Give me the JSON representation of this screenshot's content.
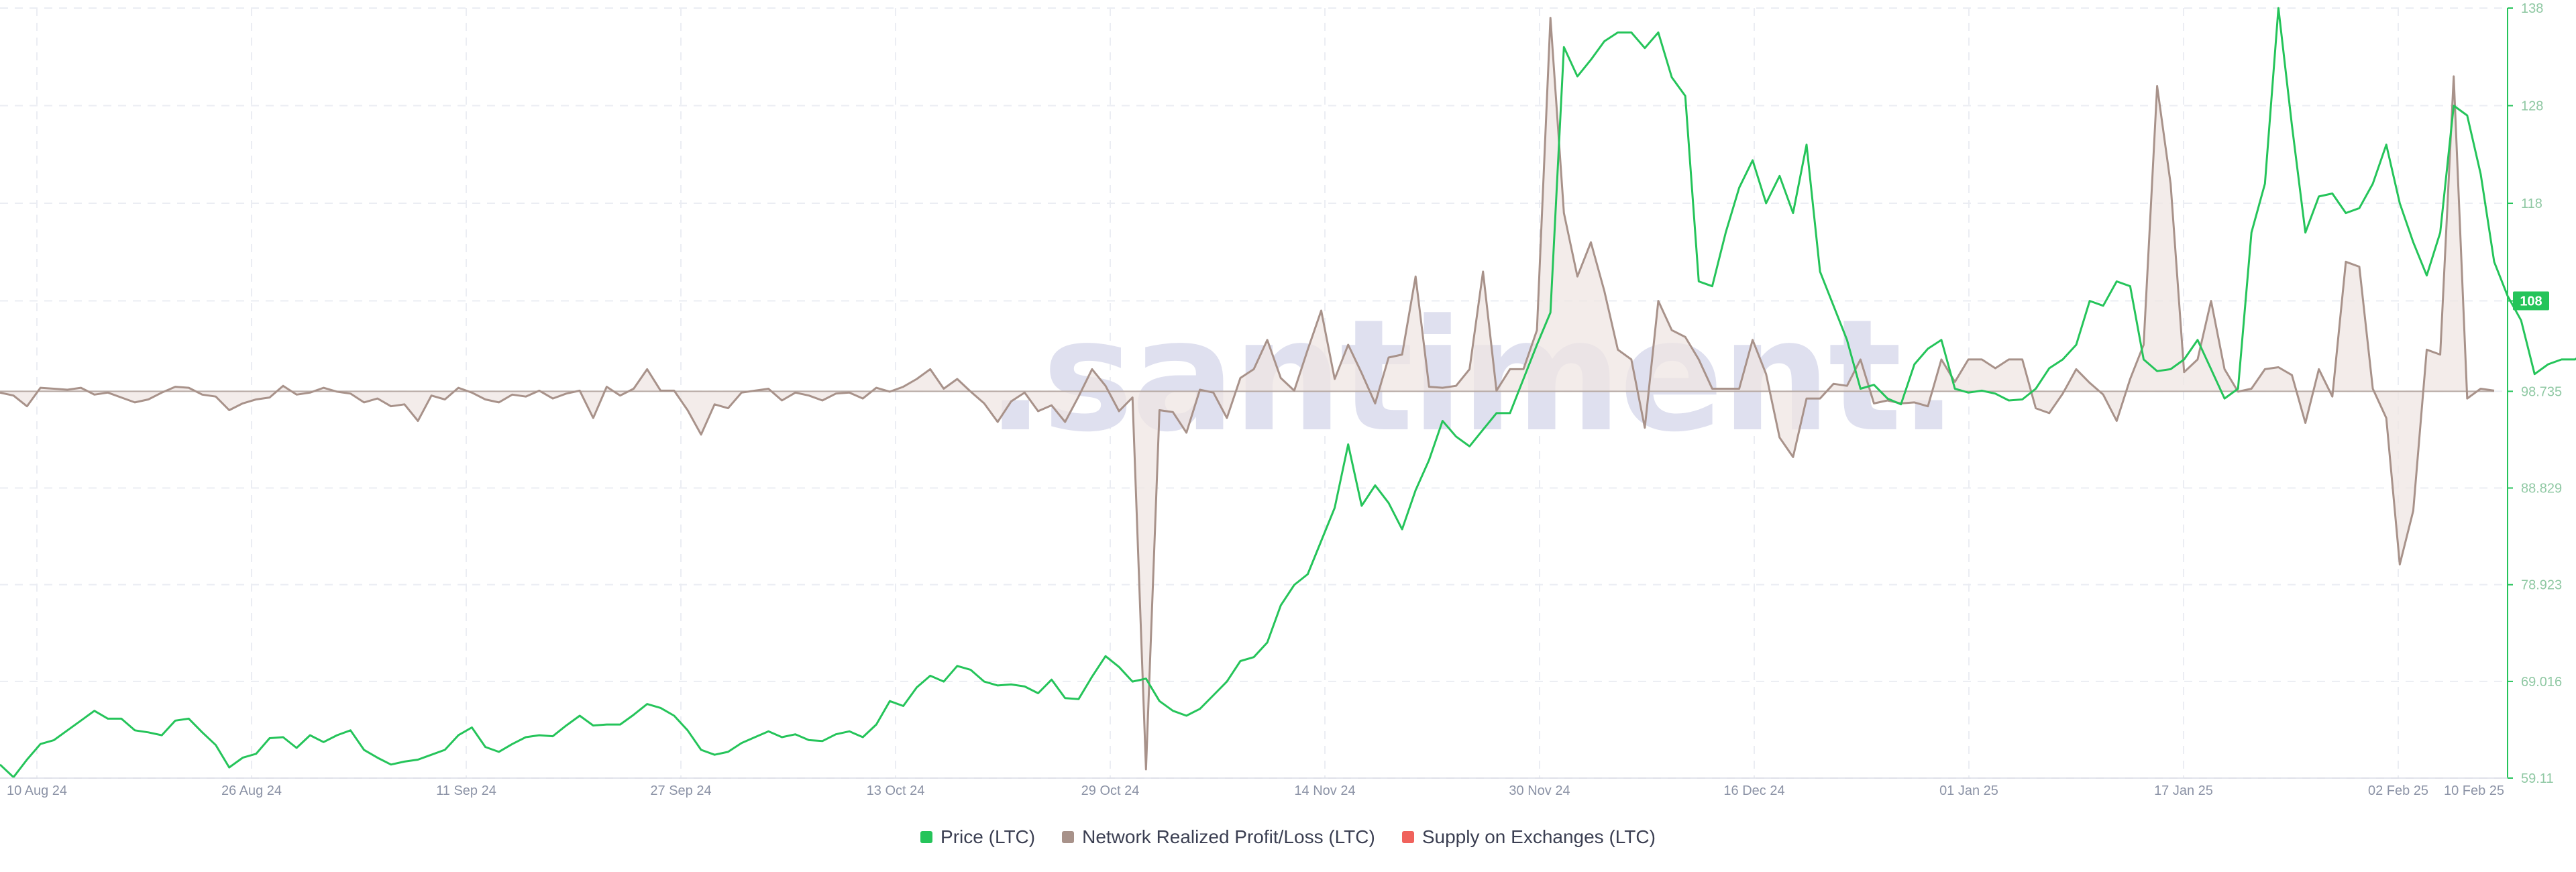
{
  "watermark": ".santiment.",
  "legend": [
    {
      "label": "Price (LTC)",
      "color": "#25c45a"
    },
    {
      "label": "Network Realized Profit/Loss (LTC)",
      "color": "#a8928a"
    },
    {
      "label": "Supply on Exchanges (LTC)",
      "color": "#f0625c"
    }
  ],
  "chart_data": {
    "type": "line",
    "x_start": "10 Aug 24",
    "x_end": "10 Feb 25",
    "x_tick_labels": [
      "10 Aug 24",
      "26 Aug 24",
      "11 Sep 24",
      "27 Sep 24",
      "13 Oct 24",
      "29 Oct 24",
      "14 Nov 24",
      "30 Nov 24",
      "16 Dec 24",
      "01 Jan 25",
      "17 Jan 25",
      "02 Feb 25",
      "10 Feb 25"
    ],
    "y_tick_labels": [
      "59.11",
      "69.016",
      "78.923",
      "88.829",
      "98.735",
      "108",
      "118",
      "128",
      "138"
    ],
    "right_axis": {
      "label": "Price (LTC)",
      "ylim": [
        59.11,
        138
      ]
    },
    "last_value_badge": "108",
    "grid": true,
    "legend_position": "bottom",
    "series": [
      {
        "name": "Network Realized Profit/Loss (LTC)",
        "baseline": 98.735,
        "values": [
          98.6,
          98.3,
          97.2,
          99.1,
          99,
          98.9,
          99.1,
          98.4,
          98.6,
          98.1,
          97.6,
          97.9,
          98.6,
          99.2,
          99.1,
          98.4,
          98.2,
          96.8,
          97.5,
          97.9,
          98.1,
          99.3,
          98.4,
          98.6,
          99.1,
          98.7,
          98.5,
          97.6,
          98,
          97.2,
          97.4,
          95.7,
          98.3,
          97.9,
          99.1,
          98.6,
          97.9,
          97.6,
          98.4,
          98.2,
          98.8,
          98,
          98.5,
          98.8,
          96,
          99.2,
          98.3,
          99,
          101,
          98.8,
          98.8,
          96.8,
          94.3,
          97.4,
          97,
          98.6,
          98.8,
          99,
          97.8,
          98.6,
          98.3,
          97.8,
          98.5,
          98.6,
          98,
          99.1,
          98.7,
          99.2,
          100,
          101,
          99,
          100,
          98.7,
          97.5,
          95.6,
          97.7,
          98.6,
          96.7,
          97.3,
          95.6,
          98.2,
          101,
          99.3,
          96.7,
          98.1,
          60,
          96.8,
          96.6,
          94.5,
          98.9,
          98.6,
          96,
          100.1,
          101,
          104,
          100.1,
          98.8,
          103,
          107,
          100,
          103.5,
          100.6,
          97.5,
          102.2,
          102.5,
          110.5,
          99.2,
          99.1,
          99.3,
          101,
          111,
          98.8,
          101,
          101,
          105,
          137,
          117,
          110.5,
          114,
          109,
          103,
          102,
          95,
          108,
          105,
          104.3,
          102,
          99,
          99,
          99,
          104,
          100.5,
          94,
          92,
          98,
          98,
          99.5,
          99.3,
          102,
          97.5,
          97.8,
          97.5,
          97.6,
          97.2,
          102,
          99.7,
          102,
          102,
          101.1,
          102,
          102,
          97,
          96.5,
          98.5,
          101,
          99.6,
          98.4,
          95.7,
          100,
          103.5,
          130,
          120,
          100.7,
          102,
          108,
          101,
          98.7,
          99,
          101,
          101.2,
          100.4,
          95.5,
          101,
          98.2,
          112,
          111.5,
          99,
          96,
          81,
          86.5,
          103,
          102.5,
          131,
          98,
          99,
          98.8
        ]
      },
      {
        "name": "Price (LTC)",
        "values": [
          60.5,
          59.2,
          61,
          62.6,
          63,
          64,
          65,
          66,
          65.2,
          65.2,
          64,
          63.8,
          63.5,
          65,
          65.2,
          63.8,
          62.5,
          60.2,
          61.2,
          61.6,
          63.2,
          63.3,
          62.2,
          63.5,
          62.8,
          63.5,
          64,
          62,
          61.2,
          60.5,
          60.8,
          61,
          61.5,
          62,
          63.5,
          64.3,
          62.3,
          61.8,
          62.6,
          63.3,
          63.5,
          63.4,
          64.5,
          65.5,
          64.5,
          64.6,
          64.6,
          65.6,
          66.7,
          66.3,
          65.5,
          64,
          62,
          61.5,
          61.8,
          62.7,
          63.3,
          63.9,
          63.3,
          63.6,
          63,
          62.9,
          63.6,
          63.9,
          63.3,
          64.6,
          67,
          66.5,
          68.4,
          69.6,
          69,
          70.6,
          70.2,
          69,
          68.6,
          68.7,
          68.5,
          67.8,
          69.2,
          67.3,
          67.2,
          69.5,
          71.6,
          70.5,
          69,
          69.3,
          67,
          66,
          65.5,
          66.2,
          67.6,
          69,
          71.1,
          71.5,
          73,
          76.8,
          78.9,
          80,
          83.4,
          86.8,
          93.3,
          87,
          89.1,
          87.3,
          84.6,
          88.6,
          91.7,
          95.7,
          94.1,
          93.1,
          94.8,
          96.5,
          96.5,
          100,
          103.5,
          106.8,
          134,
          131,
          132.7,
          134.6,
          135.5,
          135.5,
          133.9,
          135.5,
          130.9,
          129,
          110,
          109.5,
          115,
          119.6,
          122.4,
          118,
          120.8,
          117,
          124,
          111,
          107.5,
          104,
          99,
          99.4,
          98,
          97.4,
          101.5,
          103.1,
          104,
          99,
          98.6,
          98.8,
          98.5,
          97.8,
          97.9,
          99,
          101.1,
          102,
          103.5,
          108,
          107.5,
          110,
          109.5,
          102,
          100.8,
          101,
          102,
          104,
          101,
          98,
          99,
          115,
          120,
          138,
          126,
          115,
          118.7,
          119,
          117,
          117.5,
          120,
          124,
          118,
          114,
          110.6,
          115,
          128,
          127,
          121,
          112,
          108.5,
          106,
          100.5,
          101.5,
          102,
          102,
          103,
          106,
          108.5,
          108.3
        ]
      }
    ]
  }
}
